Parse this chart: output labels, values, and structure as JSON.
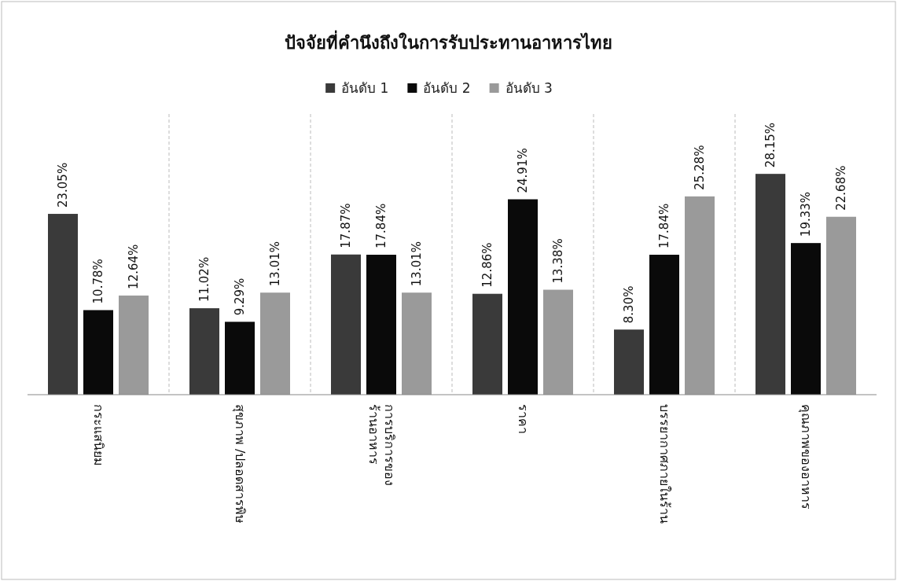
{
  "chart_data": {
    "type": "bar",
    "title": "ปัจจัยที่คำนึงถึงในการรับประทานอาหารไทย",
    "categories": [
      "กระแสนิยม",
      "สุขภาพ /ปลอดสารพิษ",
      "การบริการของ\nร้านอาหาร",
      "ราคา",
      "บรรยากาศภายในร้าน",
      "คุณภาพของอาหาร"
    ],
    "series": [
      {
        "name": "อันดับ 1",
        "color": "#3a3a3a",
        "values": [
          23.05,
          11.02,
          17.87,
          12.86,
          8.3,
          28.15
        ],
        "value_labels": [
          "23.05%",
          "11.02%",
          "17.87%",
          "12.86%",
          "8.30%",
          "28.15%"
        ]
      },
      {
        "name": "อันดับ 2",
        "color": "#0a0a0a",
        "values": [
          10.78,
          9.29,
          17.84,
          24.91,
          17.84,
          19.33
        ],
        "value_labels": [
          "10.78%",
          "9.29%",
          "17.84%",
          "24.91%",
          "17.84%",
          "19.33%"
        ]
      },
      {
        "name": "อันดับ 3",
        "color": "#9a9a9a",
        "values": [
          12.64,
          13.01,
          13.01,
          13.38,
          25.28,
          22.68
        ],
        "value_labels": [
          "12.64%",
          "13.01%",
          "13.01%",
          "13.38%",
          "25.28%",
          "22.68%"
        ]
      }
    ],
    "legend": "top",
    "grid": "x"
  }
}
